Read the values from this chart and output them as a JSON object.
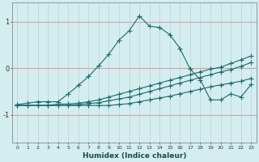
{
  "xlabel": "Humidex (Indice chaleur)",
  "bg_color": "#d4eef0",
  "grid_color": "#c0d5d8",
  "hline_color": "#d4a0a0",
  "line_color": "#1a6b6b",
  "xlim": [
    -0.5,
    23.5
  ],
  "ylim": [
    -1.6,
    1.4
  ],
  "yticks": [
    -1,
    0,
    1
  ],
  "xticks": [
    0,
    1,
    2,
    3,
    4,
    5,
    6,
    7,
    8,
    9,
    10,
    11,
    12,
    13,
    14,
    15,
    16,
    17,
    18,
    19,
    20,
    21,
    22,
    23
  ],
  "series1_x": [
    0,
    1,
    2,
    3,
    4,
    5,
    6,
    7,
    8,
    9,
    10,
    11,
    12,
    13,
    14,
    15,
    16,
    17,
    18,
    19,
    20,
    21,
    22,
    23
  ],
  "series1_y": [
    -0.78,
    -0.75,
    -0.72,
    -0.72,
    -0.72,
    -0.55,
    -0.37,
    -0.18,
    0.05,
    0.3,
    0.6,
    0.8,
    1.12,
    0.9,
    0.87,
    0.72,
    0.42,
    -0.02,
    -0.25,
    -0.68,
    -0.68,
    -0.55,
    -0.62,
    -0.35
  ],
  "series2_x": [
    0,
    1,
    2,
    3,
    4,
    5,
    6,
    7,
    8,
    9,
    10,
    11,
    12,
    13,
    14,
    15,
    16,
    17,
    18,
    19,
    20,
    21,
    22,
    23
  ],
  "series2_y": [
    -0.8,
    -0.8,
    -0.8,
    -0.8,
    -0.77,
    -0.77,
    -0.75,
    -0.72,
    -0.68,
    -0.62,
    -0.56,
    -0.5,
    -0.44,
    -0.38,
    -0.32,
    -0.26,
    -0.2,
    -0.14,
    -0.08,
    -0.02,
    0.02,
    0.1,
    0.18,
    0.26
  ],
  "series3_x": [
    0,
    1,
    2,
    3,
    4,
    5,
    6,
    7,
    8,
    9,
    10,
    11,
    12,
    13,
    14,
    15,
    16,
    17,
    18,
    19,
    20,
    21,
    22,
    23
  ],
  "series3_y": [
    -0.8,
    -0.8,
    -0.8,
    -0.8,
    -0.8,
    -0.8,
    -0.78,
    -0.76,
    -0.74,
    -0.7,
    -0.66,
    -0.62,
    -0.56,
    -0.5,
    -0.44,
    -0.38,
    -0.32,
    -0.26,
    -0.2,
    -0.14,
    -0.08,
    -0.03,
    0.04,
    0.12
  ],
  "series4_x": [
    0,
    1,
    2,
    3,
    4,
    5,
    6,
    7,
    8,
    9,
    10,
    11,
    12,
    13,
    14,
    15,
    16,
    17,
    18,
    19,
    20,
    21,
    22,
    23
  ],
  "series4_y": [
    -0.8,
    -0.8,
    -0.8,
    -0.8,
    -0.8,
    -0.8,
    -0.8,
    -0.8,
    -0.8,
    -0.8,
    -0.78,
    -0.76,
    -0.72,
    -0.68,
    -0.64,
    -0.6,
    -0.55,
    -0.5,
    -0.45,
    -0.4,
    -0.36,
    -0.32,
    -0.28,
    -0.22
  ]
}
